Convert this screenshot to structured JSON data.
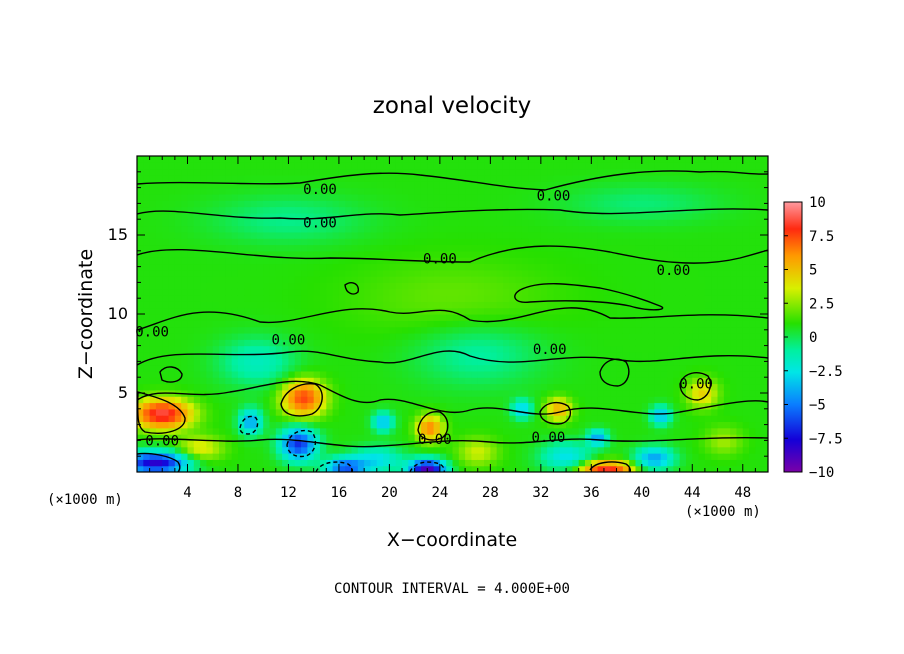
{
  "chart_data": {
    "type": "heatmap",
    "title": "zonal velocity",
    "xlabel": "X−coordinate",
    "ylabel": "Z−coordinate",
    "x_unit_left": "(×1000 m)",
    "x_unit_right": "(×1000 m)",
    "footer": "CONTOUR INTERVAL = 4.000E+00",
    "xlim": [
      0,
      50
    ],
    "ylim": [
      0,
      20
    ],
    "xticks": [
      "4",
      "8",
      "12",
      "16",
      "20",
      "24",
      "28",
      "32",
      "36",
      "40",
      "44",
      "48"
    ],
    "xtick_values": [
      4,
      8,
      12,
      16,
      20,
      24,
      28,
      32,
      36,
      40,
      44,
      48
    ],
    "yticks": [
      "5",
      "10",
      "15"
    ],
    "ytick_values": [
      5,
      10,
      15
    ],
    "colorbar": {
      "range": [
        -10,
        10
      ],
      "labels": [
        "10",
        "7.5",
        "5",
        "2.5",
        "0",
        "−2.5",
        "−5",
        "−7.5",
        "−10"
      ],
      "label_values": [
        10,
        7.5,
        5,
        2.5,
        0,
        -2.5,
        -5,
        -7.5,
        -10
      ]
    },
    "contour_labels": [
      {
        "text": "0.00",
        "x": 14.5,
        "z": 17.9
      },
      {
        "text": "0.00",
        "x": 33.0,
        "z": 17.5
      },
      {
        "text": "0.00",
        "x": 14.5,
        "z": 15.8
      },
      {
        "text": "0.00",
        "x": 24.0,
        "z": 13.5
      },
      {
        "text": "0.00",
        "x": 42.5,
        "z": 12.8
      },
      {
        "text": "0.00",
        "x": 1.2,
        "z": 8.9
      },
      {
        "text": "0.00",
        "x": 12.0,
        "z": 8.4
      },
      {
        "text": "0.00",
        "x": 32.7,
        "z": 7.8
      },
      {
        "text": "0.00",
        "x": 44.3,
        "z": 5.6
      },
      {
        "text": "0.00",
        "x": 2.0,
        "z": 2.0
      },
      {
        "text": "0.00",
        "x": 23.6,
        "z": 2.1
      },
      {
        "text": "0.00",
        "x": 32.6,
        "z": 2.2
      }
    ],
    "features": [
      {
        "x": 2.0,
        "z": 3.7,
        "rx": 2.2,
        "rz": 0.9,
        "v": 8.0
      },
      {
        "x": 13.2,
        "z": 4.7,
        "rx": 1.6,
        "rz": 1.1,
        "v": 6.5
      },
      {
        "x": 23.2,
        "z": 2.8,
        "rx": 1.0,
        "rz": 0.8,
        "v": 5.0
      },
      {
        "x": 33.4,
        "z": 4.0,
        "rx": 1.0,
        "rz": 0.7,
        "v": 4.0
      },
      {
        "x": 37.2,
        "z": 0.2,
        "rx": 2.0,
        "rz": 0.5,
        "v": 7.5
      },
      {
        "x": 44.8,
        "z": 5.0,
        "rx": 1.2,
        "rz": 0.9,
        "v": 3.0
      },
      {
        "x": 5.0,
        "z": 1.5,
        "rx": 1.8,
        "rz": 0.8,
        "v": 2.5
      },
      {
        "x": 27.0,
        "z": 1.3,
        "rx": 1.6,
        "rz": 0.9,
        "v": 2.0
      },
      {
        "x": 46.5,
        "z": 2.0,
        "rx": 1.5,
        "rz": 0.9,
        "v": 1.5
      },
      {
        "x": 1.5,
        "z": 0.6,
        "rx": 2.5,
        "rz": 0.7,
        "v": -8.5
      },
      {
        "x": 12.8,
        "z": 1.8,
        "rx": 1.4,
        "rz": 1.0,
        "v": -7.0
      },
      {
        "x": 16.5,
        "z": 0.3,
        "rx": 1.6,
        "rz": 0.6,
        "v": -6.0
      },
      {
        "x": 23.0,
        "z": 0.2,
        "rx": 1.4,
        "rz": 0.6,
        "v": -9.5
      },
      {
        "x": 9.0,
        "z": 3.2,
        "rx": 0.9,
        "rz": 0.8,
        "v": -4.5
      },
      {
        "x": 19.5,
        "z": 3.2,
        "rx": 0.8,
        "rz": 0.6,
        "v": -4.0
      },
      {
        "x": 30.5,
        "z": 4.0,
        "rx": 0.8,
        "rz": 0.6,
        "v": -3.5
      },
      {
        "x": 36.5,
        "z": 2.2,
        "rx": 0.8,
        "rz": 0.5,
        "v": -4.5
      },
      {
        "x": 41.5,
        "z": 3.6,
        "rx": 0.8,
        "rz": 0.6,
        "v": -4.0
      },
      {
        "x": 41.0,
        "z": 0.9,
        "rx": 1.5,
        "rz": 0.7,
        "v": -4.5
      },
      {
        "x": 19.0,
        "z": 0.8,
        "rx": 2.0,
        "rz": 0.8,
        "v": -3.0
      },
      {
        "x": 34.0,
        "z": 1.0,
        "rx": 2.0,
        "rz": 0.9,
        "v": -3.0
      },
      {
        "x": 9.5,
        "z": 7.0,
        "rx": 3.0,
        "rz": 1.5,
        "v": -2.0
      },
      {
        "x": 27.0,
        "z": 7.5,
        "rx": 5.0,
        "rz": 2.0,
        "v": -1.5
      },
      {
        "x": 12.0,
        "z": 16.0,
        "rx": 6.0,
        "rz": 1.5,
        "v": -1.2
      },
      {
        "x": 40.0,
        "z": 17.0,
        "rx": 6.0,
        "rz": 1.2,
        "v": -1.0
      },
      {
        "x": 25.0,
        "z": 11.0,
        "rx": 8.0,
        "rz": 2.5,
        "v": 0.8
      }
    ]
  }
}
